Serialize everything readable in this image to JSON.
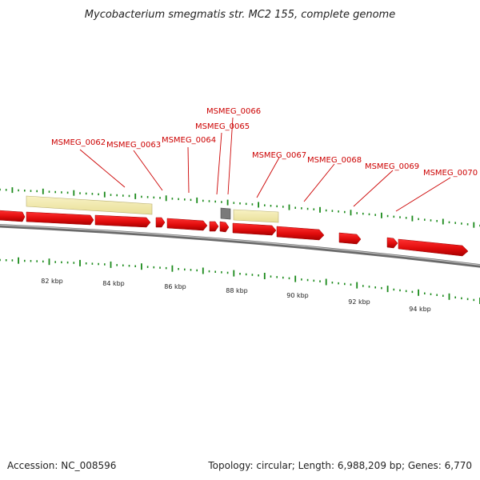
{
  "title": "Mycobacterium smegmatis str. MC2 155, complete genome",
  "footer": {
    "accession": "Accession: NC_008596",
    "summary": "Topology: circular; Length: 6,988,209 bp; Genes: 6,770"
  },
  "colors": {
    "gene": "#ee1111",
    "gene_dark": "#aa0000",
    "feature": "#f3ecb0",
    "feature_dark": "#c9c08a",
    "backbone": "#8a8a8a",
    "tick": "#1a8a1a",
    "label": "#cc0000",
    "grey_feature": "#777777"
  },
  "gene_labels": [
    "MSMEG_0062",
    "MSMEG_0063",
    "MSMEG_0064",
    "MSMEG_0065",
    "MSMEG_0066",
    "MSMEG_0067",
    "MSMEG_0068",
    "MSMEG_0069",
    "MSMEG_0070"
  ],
  "axis_labels": [
    "82 kbp",
    "84 kbp",
    "86 kbp",
    "88 kbp",
    "90 kbp",
    "92 kbp",
    "94 kbp"
  ]
}
